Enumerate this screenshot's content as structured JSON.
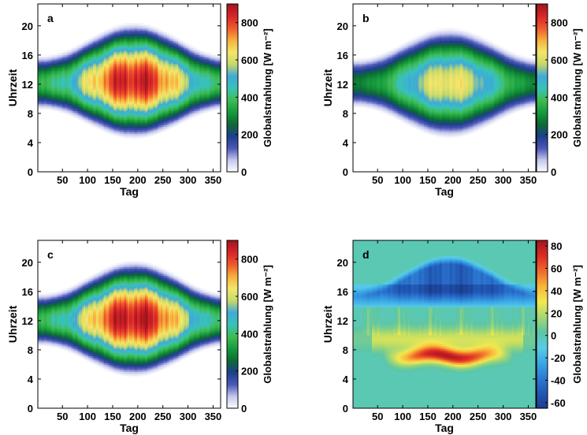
{
  "colormaps": {
    "radiation": [
      "#ffffff",
      "#c5c8ee",
      "#4c57b8",
      "#1d3f8c",
      "#0d6a33",
      "#159b3d",
      "#3fbb52",
      "#39c3b8",
      "#3ea9d8",
      "#c6d86a",
      "#f4e66a",
      "#f6b13c",
      "#ef5a2c",
      "#d8252a",
      "#a3161e"
    ],
    "difference": [
      "#1b3c8c",
      "#2157b4",
      "#2c7ad2",
      "#3aa7e6",
      "#58cde6",
      "#5cc6a5",
      "#a6d771",
      "#f1e94f",
      "#f8b63a",
      "#f06a2b",
      "#dd2b24",
      "#a5161f"
    ]
  },
  "chart_data": [
    {
      "panel": "a",
      "type": "heatmap",
      "xlabel": "Tag",
      "ylabel": "Uhrzeit",
      "xticks": [
        50,
        100,
        150,
        200,
        250,
        300,
        350
      ],
      "yticks": [
        0,
        4,
        8,
        12,
        16,
        20
      ],
      "xlim": [
        1,
        365
      ],
      "ylim": [
        0,
        23
      ],
      "colorbar": {
        "label": "Globalstrahlung [W m⁻²]",
        "ticks": [
          0,
          200,
          400,
          600,
          800
        ],
        "range": [
          0,
          900
        ],
        "colormap": "radiation"
      },
      "model": {
        "peak_value": 860,
        "sunrise_summer": 4.5,
        "sunset_summer": 20.5,
        "sunrise_winter": 8.5,
        "sunset_winter": 16,
        "variability": 0.35
      }
    },
    {
      "panel": "b",
      "type": "heatmap",
      "xlabel": "Tag",
      "ylabel": "Uhrzeit",
      "xticks": [
        50,
        100,
        150,
        200,
        250,
        300,
        350
      ],
      "yticks": [
        0,
        4,
        8,
        12,
        16,
        20
      ],
      "xlim": [
        1,
        365
      ],
      "ylim": [
        0,
        23
      ],
      "colorbar": {
        "label": "Globalstrahlung [W m⁻²]",
        "ticks": [
          0,
          200,
          400,
          600,
          800
        ],
        "range": [
          0,
          900
        ],
        "colormap": "radiation"
      },
      "model": {
        "peak_value": 640,
        "sunrise_summer": 4.6,
        "sunset_summer": 19.8,
        "sunrise_winter": 8.8,
        "sunset_winter": 15.6,
        "variability": 0.25
      }
    },
    {
      "panel": "c",
      "type": "heatmap",
      "xlabel": "Tag",
      "ylabel": "Uhrzeit",
      "xticks": [
        50,
        100,
        150,
        200,
        250,
        300,
        350
      ],
      "yticks": [
        0,
        4,
        8,
        12,
        16,
        20
      ],
      "xlim": [
        1,
        365
      ],
      "ylim": [
        0,
        23
      ],
      "colorbar": {
        "label": "Globalstrahlung [W m⁻²]",
        "ticks": [
          0,
          200,
          400,
          600,
          800
        ],
        "range": [
          0,
          900
        ],
        "colormap": "radiation"
      },
      "model": {
        "peak_value": 880,
        "sunrise_summer": 4.3,
        "sunset_summer": 20.3,
        "sunrise_winter": 8.5,
        "sunset_winter": 15.8,
        "variability": 0.35
      }
    },
    {
      "panel": "d",
      "type": "heatmap",
      "xlabel": "Tag",
      "ylabel": "Uhrzeit",
      "xticks": [
        50,
        100,
        150,
        200,
        250,
        300,
        350
      ],
      "yticks": [
        0,
        4,
        8,
        12,
        16,
        20
      ],
      "xlim": [
        1,
        365
      ],
      "ylim": [
        0,
        23
      ],
      "colorbar": {
        "label": "Globalstrahlung [W m⁻²]",
        "ticks": [
          -60,
          -40,
          -20,
          0,
          20,
          40,
          60,
          80
        ],
        "range": [
          -65,
          85
        ],
        "colormap": "difference"
      },
      "model": {
        "morning_max": 80,
        "evening_min": -60,
        "evening_center_hour": 18.5,
        "morning_center_hour": 7.5
      }
    }
  ]
}
